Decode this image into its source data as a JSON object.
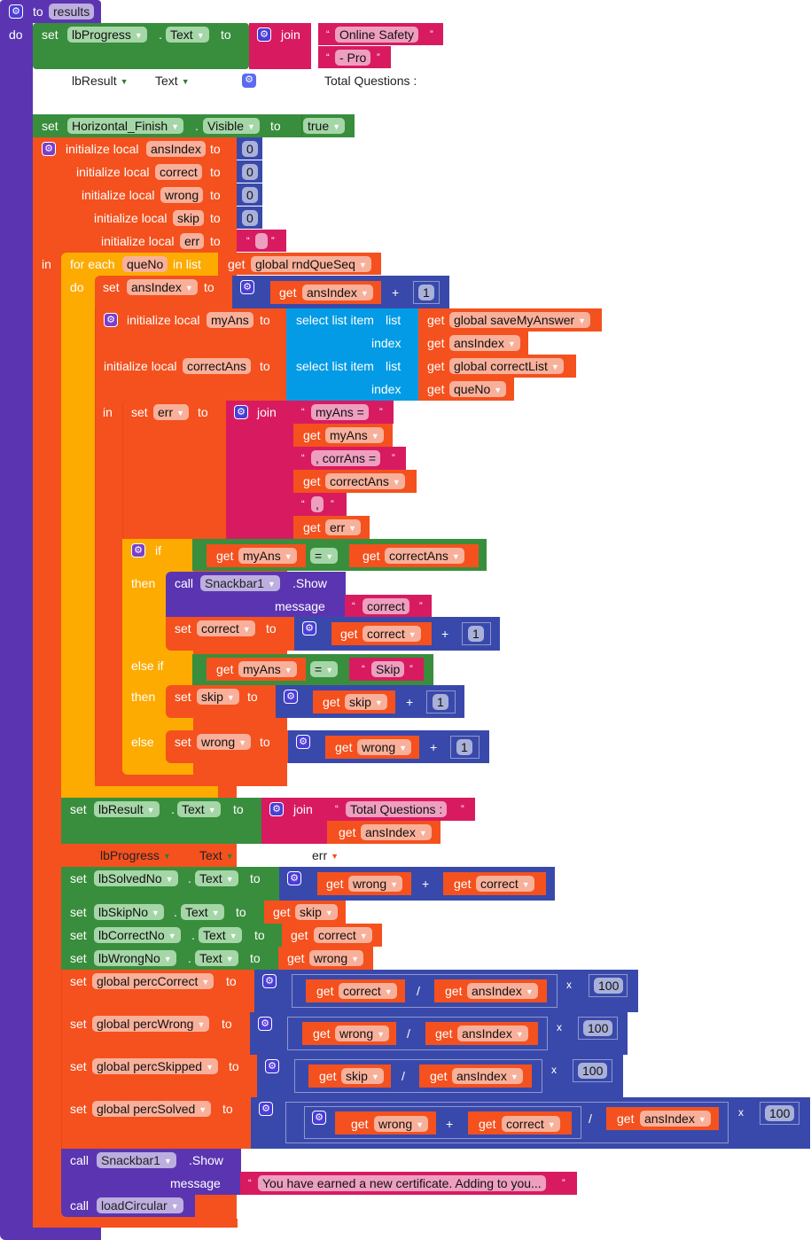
{
  "procedure": {
    "to_label": "to",
    "name": "results",
    "do_label": "do"
  },
  "labels": {
    "set": "set",
    "to": "to",
    "get": "get",
    "join": "join",
    "dot": ".",
    "init_local": "initialize local",
    "in": "in",
    "for_each": "for each",
    "in_list": "in list",
    "do": "do",
    "select_list_item": "select list item",
    "list": "list",
    "index": "index",
    "if": "if",
    "then": "then",
    "else_if": "else if",
    "else": "else",
    "call": "call",
    "show": ".Show",
    "message": "message",
    "plus": "+",
    "divide": "/",
    "times": "x",
    "eq": "=",
    "open_quote": "“",
    "close_quote": "”"
  },
  "block1": {
    "component": "lbProgress",
    "property": "Text",
    "str1": "Online Safety",
    "str2": "- Pro"
  },
  "ghost1": {
    "component": "lbResult",
    "property": "Text",
    "text": "Total Questions :"
  },
  "block2": {
    "component": "Horizontal_Finish",
    "property": "Visible",
    "value": "true"
  },
  "locals": [
    {
      "name": "ansIndex",
      "value": "0"
    },
    {
      "name": "correct",
      "value": "0"
    },
    {
      "name": "wrong",
      "value": "0"
    },
    {
      "name": "skip",
      "value": "0"
    },
    {
      "name": "err",
      "value": ""
    }
  ],
  "foreach": {
    "var": "queNo",
    "list": "global rndQueSeq"
  },
  "set_ansindex": {
    "var": "ansIndex",
    "get": "ansIndex",
    "num": "1"
  },
  "myans": {
    "name": "myAns",
    "list": "global saveMyAnswer",
    "index": "ansIndex"
  },
  "correctans": {
    "name": "correctAns",
    "list": "global correctList",
    "index": "queNo"
  },
  "set_err": {
    "var": "err",
    "s1": "myAns =",
    "g1": "myAns",
    "s2": ", corrAns =",
    "g2": "correctAns",
    "s3": ",",
    "g3": "err"
  },
  "if1": {
    "left": "myAns",
    "right": "correctAns"
  },
  "snack1": {
    "component": "Snackbar1",
    "message": "correct"
  },
  "set_correct": {
    "var": "correct",
    "get": "correct",
    "num": "1"
  },
  "elseif": {
    "left": "myAns",
    "right": "Skip"
  },
  "set_skip": {
    "var": "skip",
    "get": "skip",
    "num": "1"
  },
  "set_wrong": {
    "var": "wrong",
    "get": "wrong",
    "num": "1"
  },
  "block_result": {
    "component": "lbResult",
    "property": "Text",
    "str": "Total Questions :",
    "get": "ansIndex"
  },
  "ghost2": {
    "component": "lbProgress",
    "property": "Text",
    "var": "err"
  },
  "solved": {
    "component": "lbSolvedNo",
    "property": "Text",
    "g1": "wrong",
    "g2": "correct"
  },
  "skipno": {
    "component": "lbSkipNo",
    "property": "Text",
    "get": "skip"
  },
  "correctno": {
    "component": "lbCorrectNo",
    "property": "Text",
    "get": "correct"
  },
  "wrongno": {
    "component": "lbWrongNo",
    "property": "Text",
    "get": "wrong"
  },
  "perc": [
    {
      "var": "global percCorrect",
      "num": "correct",
      "den": "ansIndex",
      "mult": "100"
    },
    {
      "var": "global percWrong",
      "num": "wrong",
      "den": "ansIndex",
      "mult": "100"
    },
    {
      "var": "global percSkipped",
      "num": "skip",
      "den": "ansIndex",
      "mult": "100"
    }
  ],
  "percsolved": {
    "var": "global percSolved",
    "g1": "wrong",
    "g2": "correct",
    "den": "ansIndex",
    "mult": "100"
  },
  "snack2": {
    "component": "Snackbar1",
    "message": "You have earned a new certificate. Adding to you..."
  },
  "loadcall": {
    "name": "loadCircular"
  },
  "colors": {
    "procedure": "#5b35b1",
    "component": "#388e3c",
    "variable": "#f4511e",
    "control": "#fdab00",
    "text": "#d81b60",
    "math": "#3949ab",
    "list": "#039be5"
  }
}
